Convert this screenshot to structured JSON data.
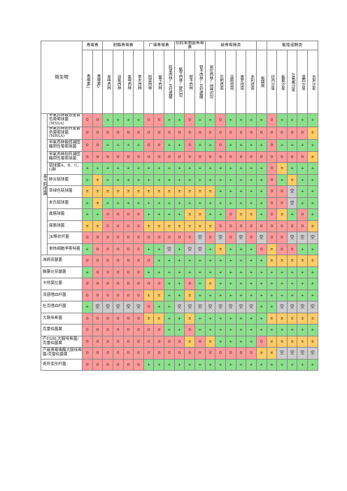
{
  "header": {
    "microbe_label": "微生物",
    "groups": [
      {
        "label": "青霉素",
        "span": 2
      },
      {
        "label": "耐酶青霉素",
        "span": 4
      },
      {
        "label": "广谱青霉素",
        "span": 3
      },
      {
        "label": "抗假单胞菌青霉素",
        "span": 3
      },
      {
        "label": "碳青霉烯类",
        "span": 5
      },
      {
        "label": "",
        "span": 1
      },
      {
        "label": "氟喹诺酮类",
        "span": 5
      }
    ],
    "drugs": [
      "青霉素G",
      "青霉素V",
      "苯唑西林",
      "双氯西林",
      "氯唑西林",
      "萘夫西林",
      "阿莫西林",
      "氨苄西林",
      "阿莫西林/克拉维酸",
      "氨苄西林/舒巴坦",
      "替卡西林",
      "替卡西林/克拉维酸",
      "哌拉西林/他唑巴坦",
      "厄他培南",
      "亚胺培南",
      "美罗培南",
      "多利培南",
      "氨曲南",
      "环丙沙星",
      "氧氟沙星",
      "左氧氟沙星",
      "莫西沙星",
      "吉米沙星"
    ]
  },
  "category_label": "革兰阳性菌",
  "legend": {
    "0": "#ff9999",
    "+": "#8ce08c",
    "±": "#ffcc66",
    "空": "#cccccc"
  },
  "rows": [
    {
      "name": "甲氧西林敏感金黄色葡萄球菌(MSSA)",
      "cells": [
        "0",
        "0",
        "+",
        "+",
        "+",
        "+",
        "0",
        "0",
        "+",
        "+",
        "0",
        "+",
        "+",
        "0",
        "+",
        "+",
        "+",
        "+",
        "0",
        "+",
        "+",
        "+",
        "+"
      ]
    },
    {
      "name": "甲氧西林耐药金黄色葡萄球菌(MRSA)",
      "cells": [
        "0",
        "0",
        "0",
        "0",
        "0",
        "0",
        "0",
        "0",
        "0",
        "0",
        "0",
        "0",
        "0",
        "0",
        "0",
        "0",
        "0",
        "0",
        "0",
        "0",
        "0",
        "0",
        "±"
      ]
    },
    {
      "name": "甲氧西林敏感凝固酶阴性葡萄球菌",
      "cells": [
        "0",
        "0",
        "+",
        "+",
        "+",
        "+",
        "0",
        "0",
        "+",
        "+",
        "0",
        "+",
        "+",
        "0",
        "+",
        "+",
        "+",
        "+",
        "0",
        "+",
        "+",
        "+",
        "+"
      ]
    },
    {
      "name": "甲氧西林耐药凝固酶阴性葡萄球菌",
      "cells": [
        "0",
        "0",
        "0",
        "0",
        "0",
        "0",
        "0",
        "0",
        "0",
        "0",
        "0",
        "0",
        "0",
        "0",
        "0",
        "0",
        "0",
        "0",
        "0",
        "0",
        "0",
        "0",
        "±"
      ]
    },
    {
      "name": "链球菌A、B、C、G群",
      "cells": [
        "+",
        "+",
        "+",
        "+",
        "+",
        "+",
        "+",
        "+",
        "+",
        "+",
        "+",
        "+",
        "+",
        "+",
        "+",
        "+",
        "+",
        "+",
        "0",
        "±",
        "+",
        "+",
        "+"
      ]
    },
    {
      "name": "肺炎链球菌",
      "cells": [
        "+",
        "±",
        "+",
        "+",
        "+",
        "+",
        "+",
        "+",
        "+",
        "+",
        "+",
        "+",
        "+",
        "+",
        "+",
        "+",
        "+",
        "+",
        "0",
        "+",
        "±",
        "+",
        "+"
      ]
    },
    {
      "name": "草绿色链球菌",
      "cells": [
        "±",
        "±",
        "±",
        "±",
        "±",
        "±",
        "±",
        "±",
        "±",
        "±",
        "±",
        "±",
        "±",
        "+",
        "+",
        "+",
        "+",
        "+",
        "0",
        "0",
        "空",
        "+",
        "+"
      ]
    },
    {
      "name": "米氏链球菌",
      "cells": [
        "+",
        "±",
        "+",
        "+",
        "+",
        "+",
        "+",
        "+",
        "+",
        "+",
        "+",
        "+",
        "+",
        "+",
        "+",
        "+",
        "+",
        "+",
        "0",
        "0",
        "空",
        "+",
        "+"
      ]
    },
    {
      "name": "粪肠球菌",
      "cells": [
        "+",
        "+",
        "0",
        "0",
        "0",
        "0",
        "+",
        "+",
        "+",
        "+",
        "±",
        "±",
        "+",
        "+",
        "0",
        "±",
        "±",
        "+",
        "0",
        "±",
        "+",
        "0",
        "+"
      ]
    },
    {
      "name": "屎肠球菌",
      "cells": [
        "±",
        "±",
        "0",
        "0",
        "0",
        "0",
        "±",
        "±",
        "±",
        "±",
        "±",
        "±",
        "±",
        "0",
        "0",
        "0",
        "0",
        "0",
        "0",
        "0",
        "0",
        "0",
        "±"
      ]
    },
    {
      "name": "JK棒状杆菌",
      "cells": [
        "0",
        "0",
        "0",
        "0",
        "0",
        "0",
        "0",
        "0",
        "0",
        "0",
        "0",
        "空",
        "0",
        "空",
        "0",
        "空",
        "0",
        "空",
        "0",
        "0",
        "空",
        "空",
        "空"
      ]
    },
    {
      "name": "单核细胞李斯特菌",
      "cells": [
        "+",
        "0",
        "0",
        "0",
        "0",
        "0",
        "+",
        "+",
        "空",
        "+",
        "空",
        "空",
        "+",
        "±",
        "+",
        "+",
        "+",
        "0",
        "±",
        "0",
        "0",
        "+",
        "+"
      ]
    },
    {
      "name": "淋病奈瑟菌",
      "cells": [
        "0",
        "0",
        "0",
        "0",
        "0",
        "0",
        "0",
        "+",
        "+",
        "+",
        "+",
        "+",
        "+",
        "+",
        "+",
        "+",
        "+",
        "+",
        "±",
        "±",
        "±",
        "±",
        "±"
      ]
    },
    {
      "name": "脑膜炎奈瑟菌",
      "cells": [
        "+",
        "0",
        "0",
        "0",
        "0",
        "0",
        "+",
        "+",
        "+",
        "+",
        "+",
        "+",
        "+",
        "+",
        "+",
        "+",
        "+",
        "+",
        "+",
        "+",
        "+",
        "+",
        "+"
      ]
    },
    {
      "name": "卡他莫拉菌",
      "cells": [
        "0",
        "0",
        "0",
        "0",
        "0",
        "0",
        "0",
        "0",
        "+",
        "+",
        "0",
        "+",
        "±",
        "+",
        "+",
        "+",
        "+",
        "+",
        "+",
        "+",
        "+",
        "+",
        "+"
      ]
    },
    {
      "name": "流感嗜血杆菌",
      "cells": [
        "0",
        "0",
        "0",
        "0",
        "0",
        "0",
        "±",
        "±",
        "+",
        "+",
        "±",
        "+",
        "+",
        "+",
        "+",
        "+",
        "+",
        "+",
        "+",
        "+",
        "+",
        "+",
        "+"
      ]
    },
    {
      "name": "杜克嗜血杆菌",
      "cells": [
        "+",
        "空",
        "空",
        "空",
        "空",
        "空",
        "0",
        "+",
        "+",
        "空",
        "空",
        "空",
        "空",
        "空",
        "空",
        "空",
        "空",
        "+",
        "+",
        "空",
        "空",
        "空",
        "空"
      ]
    },
    {
      "name": "大肠埃希菌",
      "cells": [
        "0",
        "0",
        "0",
        "0",
        "0",
        "0",
        "±",
        "±",
        "+",
        "+",
        "±",
        "+",
        "+",
        "+",
        "+",
        "+",
        "+",
        "+",
        "±",
        "±",
        "±",
        "±",
        "±"
      ]
    },
    {
      "name": "克雷伯菌属",
      "cells": [
        "0",
        "0",
        "0",
        "0",
        "0",
        "0",
        "0",
        "0",
        "+",
        "+",
        "0",
        "+",
        "+",
        "+",
        "+",
        "+",
        "+",
        "+",
        "+",
        "+",
        "+",
        "+",
        "+"
      ]
    },
    {
      "name": "产ESBL大肠埃希菌/克雷伯菌属",
      "cells": [
        "0",
        "0",
        "0",
        "0",
        "0",
        "0",
        "0",
        "0",
        "0",
        "0",
        "±",
        "0",
        "±",
        "+",
        "+",
        "+",
        "+",
        "0",
        "±",
        "±",
        "±",
        "±",
        "±"
      ]
    },
    {
      "name": "产碳青霉烯酶大肠埃希菌/克雷伯菌属",
      "cells": [
        "0",
        "0",
        "0",
        "0",
        "0",
        "0",
        "0",
        "0",
        "0",
        "0",
        "0",
        "0",
        "0",
        "0",
        "0",
        "0",
        "0",
        "±",
        "±",
        "空",
        "空",
        "空",
        "空"
      ]
    },
    {
      "name": "奇异变形杆菌",
      "cells": [
        "0",
        "0",
        "0",
        "0",
        "0",
        "0",
        "+",
        "+",
        "+",
        "+",
        "+",
        "+",
        "+",
        "+",
        "+",
        "+",
        "+",
        "+",
        "+",
        "+",
        "+",
        "+",
        "+"
      ]
    }
  ]
}
